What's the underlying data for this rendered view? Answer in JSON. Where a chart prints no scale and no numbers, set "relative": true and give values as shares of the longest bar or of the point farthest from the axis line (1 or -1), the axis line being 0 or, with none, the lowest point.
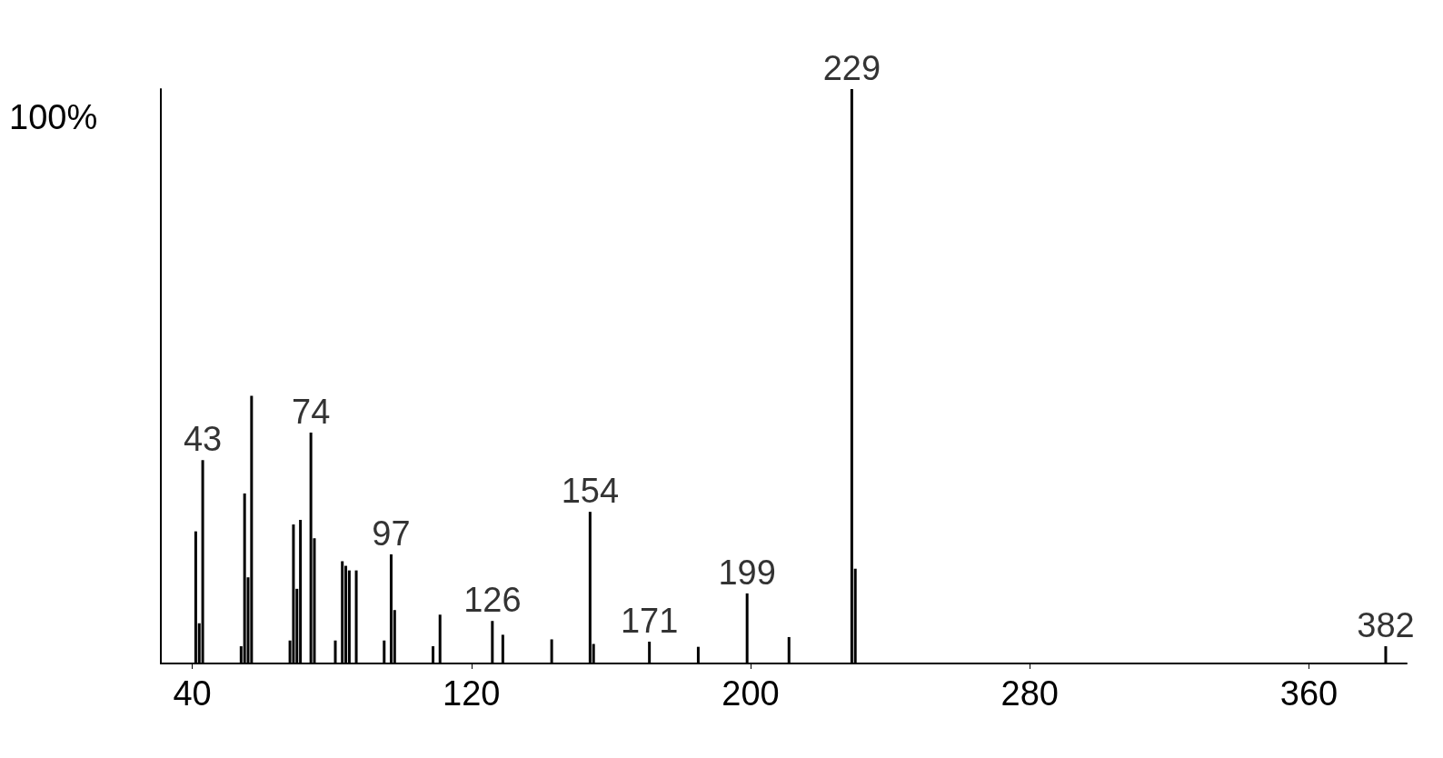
{
  "chart_data": {
    "type": "bar",
    "relative": true,
    "color": "#000000",
    "x": [
      41,
      42,
      43,
      54,
      55,
      56,
      57,
      68,
      69,
      70,
      71,
      74,
      75,
      81,
      83,
      84,
      85,
      87,
      95,
      97,
      98,
      109,
      111,
      126,
      129,
      143,
      154,
      155,
      171,
      185,
      199,
      211,
      229,
      230,
      382
    ],
    "values": [
      0.23,
      0.07,
      0.354,
      0.03,
      0.296,
      0.15,
      0.466,
      0.04,
      0.242,
      0.13,
      0.25,
      0.402,
      0.218,
      0.04,
      0.178,
      0.17,
      0.162,
      0.162,
      0.04,
      0.19,
      0.093,
      0.03,
      0.085,
      0.074,
      0.05,
      0.042,
      0.264,
      0.034,
      0.038,
      0.029,
      0.122,
      0.046,
      1,
      0.165,
      0.03
    ],
    "xlim": [
      31,
      388
    ],
    "xticks": [
      40,
      120,
      200,
      280,
      360
    ],
    "annotations": [
      "100%",
      {
        "text": "43",
        "x": 43,
        "y": 0.354
      },
      {
        "text": "74",
        "x": 74,
        "y": 0.402
      },
      {
        "text": "97",
        "x": 97,
        "y": 0.19
      },
      {
        "text": "126",
        "x": 126,
        "y": 0.074
      },
      {
        "text": "154",
        "x": 154,
        "y": 0.264
      },
      {
        "text": "171",
        "x": 171,
        "y": 0.038
      },
      {
        "text": "199",
        "x": 199,
        "y": 0.122
      },
      {
        "text": "229",
        "x": 229,
        "y": 1
      },
      {
        "text": "382",
        "x": 382,
        "y": 0.03
      }
    ],
    "grid": false
  }
}
